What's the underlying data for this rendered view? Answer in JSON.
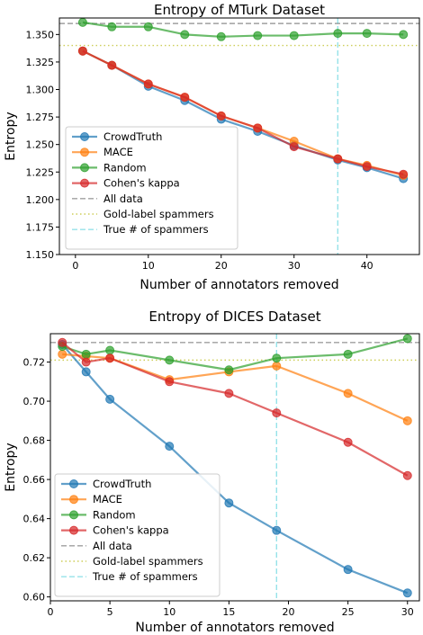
{
  "chart_data": [
    {
      "type": "line",
      "title": "Entropy of MTurk Dataset",
      "xlabel": "Number of annotators removed",
      "ylabel": "Entropy",
      "xlim": [
        -2.2,
        47.2
      ],
      "ylim": [
        1.15,
        1.365
      ],
      "xticks": [
        0,
        10,
        20,
        30,
        40
      ],
      "yticks": [
        1.15,
        1.175,
        1.2,
        1.225,
        1.25,
        1.275,
        1.3,
        1.325,
        1.35
      ],
      "xtick_labels": [
        "0",
        "10",
        "20",
        "30",
        "40"
      ],
      "ytick_labels": [
        "1.150",
        "1.175",
        "1.200",
        "1.225",
        "1.250",
        "1.275",
        "1.300",
        "1.325",
        "1.350"
      ],
      "grid": false,
      "legend_position": "lower-left",
      "x": [
        1,
        5,
        10,
        15,
        20,
        25,
        30,
        36,
        40,
        45
      ],
      "series": [
        {
          "name": "CrowdTruth",
          "color": "#1f77b4",
          "values": [
            1.335,
            1.322,
            1.303,
            1.29,
            1.273,
            1.262,
            1.249,
            1.236,
            1.229,
            1.219
          ]
        },
        {
          "name": "MACE",
          "color": "#ff7f0e",
          "values": [
            1.335,
            1.322,
            1.305,
            1.293,
            1.276,
            1.265,
            1.253,
            1.237,
            1.231,
            1.222
          ]
        },
        {
          "name": "Random",
          "color": "#2ca02c",
          "values": [
            1.361,
            1.357,
            1.357,
            1.35,
            1.348,
            1.349,
            1.349,
            1.351,
            1.351,
            1.35
          ]
        },
        {
          "name": "Cohen's kappa",
          "color": "#d62728",
          "values": [
            1.335,
            1.322,
            1.305,
            1.293,
            1.276,
            1.265,
            1.248,
            1.237,
            1.23,
            1.223
          ]
        }
      ],
      "reference_lines": [
        {
          "name": "All data",
          "orientation": "horizontal",
          "value": 1.36,
          "color": "#7f7f7f",
          "style": "dashed"
        },
        {
          "name": "Gold-label spammers",
          "orientation": "horizontal",
          "value": 1.34,
          "color": "#bcbd22",
          "style": "dotted"
        },
        {
          "name": "True # of spammers",
          "orientation": "vertical",
          "value": 36,
          "color": "#17becf",
          "style": "dashed"
        }
      ]
    },
    {
      "type": "line",
      "title": "Entropy of DICES Dataset",
      "xlabel": "Number of annotators removed",
      "ylabel": "Entropy",
      "xlim": [
        0.0,
        31.0
      ],
      "ylim": [
        0.598,
        0.7345
      ],
      "xticks": [
        0,
        5,
        10,
        15,
        20,
        25,
        30
      ],
      "yticks": [
        0.6,
        0.62,
        0.64,
        0.66,
        0.68,
        0.7,
        0.72
      ],
      "xtick_labels": [
        "0",
        "5",
        "10",
        "15",
        "20",
        "25",
        "30"
      ],
      "ytick_labels": [
        "0.60",
        "0.62",
        "0.64",
        "0.66",
        "0.68",
        "0.70",
        "0.72"
      ],
      "grid": false,
      "legend_position": "lower-left",
      "x": [
        1,
        3,
        5,
        10,
        15,
        19,
        25,
        30
      ],
      "series": [
        {
          "name": "CrowdTruth",
          "color": "#1f77b4",
          "values": [
            0.729,
            0.715,
            0.701,
            0.677,
            0.648,
            0.634,
            0.614,
            0.602
          ]
        },
        {
          "name": "MACE",
          "color": "#ff7f0e",
          "values": [
            0.724,
            0.723,
            0.722,
            0.711,
            0.715,
            0.718,
            0.704,
            0.69
          ]
        },
        {
          "name": "Random",
          "color": "#2ca02c",
          "values": [
            0.728,
            0.724,
            0.726,
            0.721,
            0.716,
            0.722,
            0.724,
            0.732
          ]
        },
        {
          "name": "Cohen's kappa",
          "color": "#d62728",
          "values": [
            0.73,
            0.72,
            0.722,
            0.71,
            0.704,
            0.694,
            0.679,
            0.662
          ]
        }
      ],
      "reference_lines": [
        {
          "name": "All data",
          "orientation": "horizontal",
          "value": 0.73,
          "color": "#7f7f7f",
          "style": "dashed"
        },
        {
          "name": "Gold-label spammers",
          "orientation": "horizontal",
          "value": 0.721,
          "color": "#bcbd22",
          "style": "dotted"
        },
        {
          "name": "True # of spammers",
          "orientation": "vertical",
          "value": 19,
          "color": "#17becf",
          "style": "dashed"
        }
      ]
    }
  ]
}
